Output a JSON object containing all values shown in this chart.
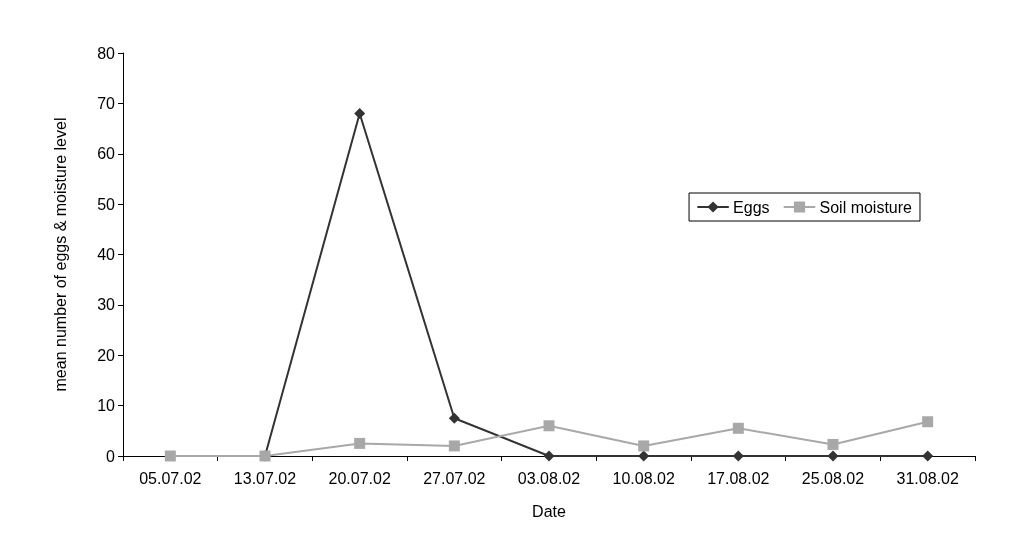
{
  "chart_data": {
    "type": "line",
    "xlabel": "Date",
    "ylabel": "mean number of eggs & moisture level",
    "categories": [
      "05.07.02",
      "13.07.02",
      "20.07.02",
      "27.07.02",
      "03.08.02",
      "10.08.02",
      "17.08.02",
      "25.08.02",
      "31.08.02"
    ],
    "series": [
      {
        "name": "Eggs",
        "color": "#333333",
        "marker": "diamond",
        "values": [
          null,
          0,
          68,
          7.5,
          0,
          0,
          0,
          0,
          0
        ]
      },
      {
        "name": "Soil moisture",
        "color": "#a8a8a8",
        "marker": "square",
        "values": [
          0,
          0,
          2.5,
          2,
          6,
          2,
          5.5,
          2.3,
          6.8
        ]
      }
    ],
    "ylim": [
      0,
      80
    ],
    "yticks": [
      0,
      10,
      20,
      30,
      40,
      50,
      60,
      70,
      80
    ],
    "grid": false,
    "legend": "right",
    "line_style": "solid"
  }
}
